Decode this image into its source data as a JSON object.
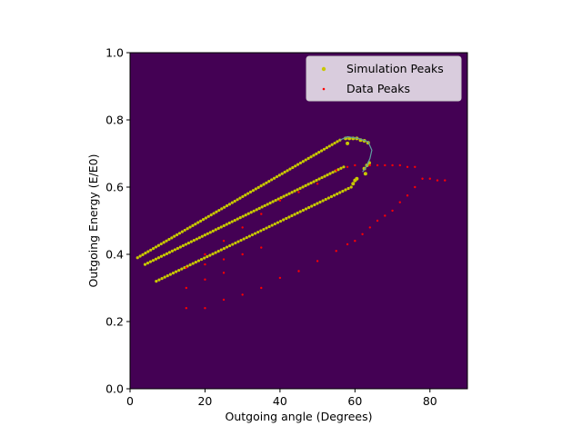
{
  "chart_data": {
    "type": "scatter",
    "xlabel": "Outgoing angle (Degrees)",
    "ylabel": "Outgoing Energy (E/E0)",
    "xlim": [
      0,
      90
    ],
    "ylim": [
      0,
      1.0
    ],
    "xticks": [
      0,
      20,
      40,
      60,
      80
    ],
    "yticks": [
      0.0,
      0.2,
      0.4,
      0.6,
      0.8,
      1.0
    ],
    "xtick_labels": [
      "0",
      "20",
      "40",
      "60",
      "80"
    ],
    "ytick_labels": [
      "0.0",
      "0.2",
      "0.4",
      "0.6",
      "0.8",
      "1.0"
    ],
    "background_color": "#440154",
    "grid": false,
    "legend_position": "top-right",
    "series": [
      {
        "name": "Simulation Peaks",
        "color": "#c8c800",
        "branches": [
          {
            "x0": 2.0,
            "y0": 0.39,
            "x1": 56.0,
            "y1": 0.74,
            "n": 78
          },
          {
            "x0": 4.0,
            "y0": 0.37,
            "x1": 57.0,
            "y1": 0.66,
            "n": 74
          },
          {
            "x0": 7.0,
            "y0": 0.32,
            "x1": 59.0,
            "y1": 0.6,
            "n": 70
          }
        ],
        "extra_points": [
          {
            "x": 57.5,
            "y": 0.745
          },
          {
            "x": 58.5,
            "y": 0.745
          },
          {
            "x": 59.5,
            "y": 0.745
          },
          {
            "x": 60.5,
            "y": 0.745
          },
          {
            "x": 61.5,
            "y": 0.74
          },
          {
            "x": 62.5,
            "y": 0.738
          },
          {
            "x": 63.5,
            "y": 0.732
          },
          {
            "x": 58.0,
            "y": 0.73
          },
          {
            "x": 62.5,
            "y": 0.655
          },
          {
            "x": 63.2,
            "y": 0.665
          },
          {
            "x": 63.8,
            "y": 0.672
          },
          {
            "x": 62.8,
            "y": 0.64
          },
          {
            "x": 60.0,
            "y": 0.62
          },
          {
            "x": 59.5,
            "y": 0.61
          },
          {
            "x": 60.5,
            "y": 0.625
          }
        ]
      },
      {
        "name": "Data Peaks",
        "color": "#ff0000",
        "points": [
          {
            "x": 15,
            "y": 0.24
          },
          {
            "x": 20,
            "y": 0.24
          },
          {
            "x": 25,
            "y": 0.265
          },
          {
            "x": 15,
            "y": 0.3
          },
          {
            "x": 20,
            "y": 0.325
          },
          {
            "x": 25,
            "y": 0.345
          },
          {
            "x": 30,
            "y": 0.28
          },
          {
            "x": 35,
            "y": 0.3
          },
          {
            "x": 40,
            "y": 0.33
          },
          {
            "x": 45,
            "y": 0.35
          },
          {
            "x": 50,
            "y": 0.38
          },
          {
            "x": 55,
            "y": 0.41
          },
          {
            "x": 58,
            "y": 0.43
          },
          {
            "x": 60,
            "y": 0.44
          },
          {
            "x": 62,
            "y": 0.46
          },
          {
            "x": 64,
            "y": 0.48
          },
          {
            "x": 66,
            "y": 0.5
          },
          {
            "x": 68,
            "y": 0.515
          },
          {
            "x": 70,
            "y": 0.53
          },
          {
            "x": 72,
            "y": 0.555
          },
          {
            "x": 74,
            "y": 0.575
          },
          {
            "x": 76,
            "y": 0.6
          },
          {
            "x": 78,
            "y": 0.625
          },
          {
            "x": 80,
            "y": 0.625
          },
          {
            "x": 82,
            "y": 0.62
          },
          {
            "x": 84,
            "y": 0.62
          },
          {
            "x": 15,
            "y": 0.36
          },
          {
            "x": 20,
            "y": 0.37
          },
          {
            "x": 25,
            "y": 0.385
          },
          {
            "x": 30,
            "y": 0.4
          },
          {
            "x": 35,
            "y": 0.42
          },
          {
            "x": 20,
            "y": 0.4
          },
          {
            "x": 25,
            "y": 0.44
          },
          {
            "x": 30,
            "y": 0.48
          },
          {
            "x": 35,
            "y": 0.52
          },
          {
            "x": 40,
            "y": 0.56
          },
          {
            "x": 45,
            "y": 0.585
          },
          {
            "x": 50,
            "y": 0.61
          },
          {
            "x": 55,
            "y": 0.65
          },
          {
            "x": 58,
            "y": 0.66
          },
          {
            "x": 60,
            "y": 0.665
          },
          {
            "x": 64,
            "y": 0.665
          },
          {
            "x": 66,
            "y": 0.665
          },
          {
            "x": 68,
            "y": 0.665
          },
          {
            "x": 70,
            "y": 0.665
          },
          {
            "x": 72,
            "y": 0.665
          },
          {
            "x": 74,
            "y": 0.66
          },
          {
            "x": 76,
            "y": 0.66
          }
        ]
      }
    ]
  }
}
